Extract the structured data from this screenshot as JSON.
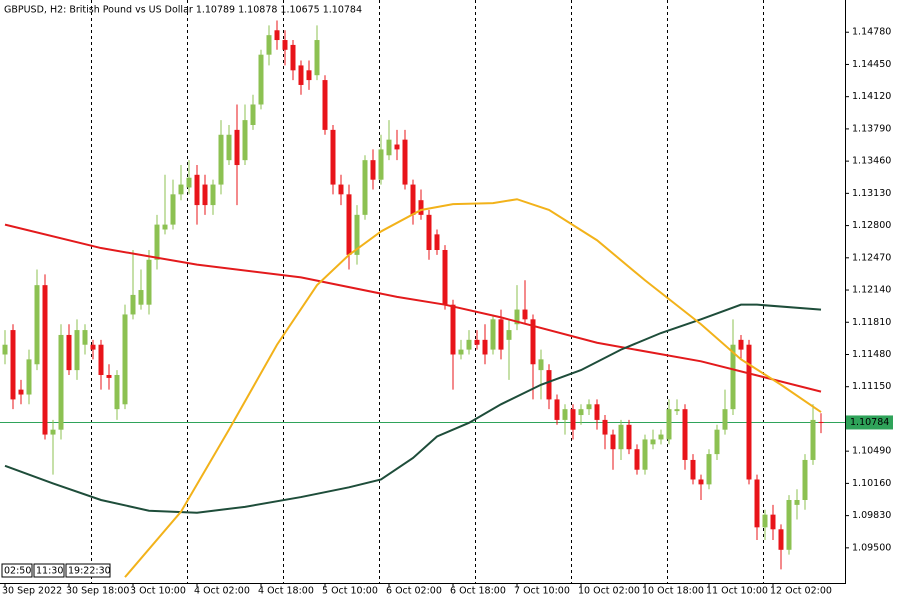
{
  "chart_data": {
    "type": "candlestick",
    "title": "GBPUSD, H2:  British Pound vs US Dollar  1.10789 1.10878 1.10675 1.10784",
    "categories": [
      "30 Sep 2022",
      null,
      null,
      null,
      null,
      null,
      null,
      null,
      "30 Sep 18:00",
      null,
      null,
      null,
      null,
      null,
      null,
      null,
      "3 Oct 10:00",
      null,
      null,
      null,
      null,
      null,
      null,
      null,
      "4 Oct 02:00",
      null,
      null,
      null,
      null,
      null,
      null,
      null,
      "4 Oct 18:00",
      null,
      null,
      null,
      null,
      null,
      null,
      null,
      "5 Oct 10:00",
      null,
      null,
      null,
      null,
      null,
      null,
      null,
      "6 Oct 02:00",
      null,
      null,
      null,
      null,
      null,
      null,
      null,
      "6 Oct 18:00",
      null,
      null,
      null,
      null,
      null,
      null,
      null,
      "7 Oct 10:00",
      null,
      null,
      null,
      null,
      null,
      null,
      null,
      "10 Oct 02:00",
      null,
      null,
      null,
      null,
      null,
      null,
      null,
      "10 Oct 18:00",
      null,
      null,
      null,
      null,
      null,
      null,
      null,
      "11 Oct 10:00",
      null,
      null,
      null,
      null,
      null,
      null,
      null,
      "12 Oct 02:00",
      null,
      null,
      null,
      null,
      null,
      null
    ],
    "candles": [
      [
        1.1148,
        1.1173,
        1.1138,
        1.1158
      ],
      [
        1.1173,
        1.1179,
        1.1092,
        1.1102
      ],
      [
        1.1112,
        1.1122,
        1.1097,
        1.1107
      ],
      [
        1.1107,
        1.1153,
        1.1097,
        1.1143
      ],
      [
        1.1138,
        1.1235,
        1.1132,
        1.1219
      ],
      [
        1.1219,
        1.123,
        1.1061,
        1.1066
      ],
      [
        1.1066,
        1.1081,
        1.1025,
        1.1071
      ],
      [
        1.1071,
        1.1179,
        1.1061,
        1.1168
      ],
      [
        1.1168,
        1.1179,
        1.1127,
        1.1132
      ],
      [
        1.1132,
        1.1184,
        1.1122,
        1.1173
      ],
      [
        1.1158,
        1.1179,
        1.1148,
        1.1173
      ],
      [
        1.1158,
        1.1163,
        1.1143,
        1.1153
      ],
      [
        1.1158,
        1.1163,
        1.1112,
        1.1127
      ],
      [
        1.1127,
        1.1138,
        1.1112,
        1.1124
      ],
      [
        1.1092,
        1.1132,
        1.1081,
        1.1127
      ],
      [
        1.1097,
        1.1199,
        1.1092,
        1.1189
      ],
      [
        1.1189,
        1.1255,
        1.1184,
        1.1209
      ],
      [
        1.1199,
        1.1235,
        1.1194,
        1.1214
      ],
      [
        1.1199,
        1.1255,
        1.1189,
        1.1245
      ],
      [
        1.1245,
        1.1291,
        1.1235,
        1.1281
      ],
      [
        1.1276,
        1.1332,
        1.1271,
        1.1281
      ],
      [
        1.1281,
        1.1327,
        1.1276,
        1.1312
      ],
      [
        1.1312,
        1.1342,
        1.1306,
        1.1322
      ],
      [
        1.1319,
        1.1347,
        1.1312,
        1.1329
      ],
      [
        1.1332,
        1.1342,
        1.1281,
        1.1301
      ],
      [
        1.1322,
        1.1332,
        1.1291,
        1.1301
      ],
      [
        1.1301,
        1.1327,
        1.1291,
        1.1322
      ],
      [
        1.1322,
        1.1388,
        1.1312,
        1.1373
      ],
      [
        1.1347,
        1.1383,
        1.1342,
        1.1373
      ],
      [
        1.1378,
        1.1404,
        1.1301,
        1.1342
      ],
      [
        1.1347,
        1.1404,
        1.1342,
        1.1388
      ],
      [
        1.1383,
        1.1414,
        1.1378,
        1.1404
      ],
      [
        1.1404,
        1.146,
        1.1399,
        1.1455
      ],
      [
        1.1455,
        1.1485,
        1.1444,
        1.1475
      ],
      [
        1.148,
        1.149,
        1.146,
        1.147
      ],
      [
        1.147,
        1.148,
        1.1444,
        1.146
      ],
      [
        1.1465,
        1.147,
        1.1429,
        1.1439
      ],
      [
        1.1444,
        1.1449,
        1.1414,
        1.1424
      ],
      [
        1.1439,
        1.1449,
        1.1419,
        1.1429
      ],
      [
        1.1434,
        1.1485,
        1.1429,
        1.147
      ],
      [
        1.1429,
        1.1434,
        1.1373,
        1.1378
      ],
      [
        1.1378,
        1.1383,
        1.1312,
        1.1322
      ],
      [
        1.1322,
        1.1332,
        1.1301,
        1.1312
      ],
      [
        1.1312,
        1.1322,
        1.1235,
        1.125
      ],
      [
        1.125,
        1.1301,
        1.124,
        1.1291
      ],
      [
        1.1291,
        1.1352,
        1.1286,
        1.1347
      ],
      [
        1.1347,
        1.1358,
        1.1317,
        1.1327
      ],
      [
        1.1327,
        1.1373,
        1.1322,
        1.1358
      ],
      [
        1.1352,
        1.1388,
        1.1347,
        1.1368
      ],
      [
        1.1363,
        1.1378,
        1.1347,
        1.1358
      ],
      [
        1.1368,
        1.1378,
        1.1317,
        1.1322
      ],
      [
        1.1322,
        1.1327,
        1.1281,
        1.1291
      ],
      [
        1.1306,
        1.1317,
        1.1286,
        1.1291
      ],
      [
        1.1291,
        1.1296,
        1.1245,
        1.1255
      ],
      [
        1.1271,
        1.1276,
        1.125,
        1.1255
      ],
      [
        1.1255,
        1.126,
        1.1194,
        1.1199
      ],
      [
        1.1199,
        1.1204,
        1.1112,
        1.1148
      ],
      [
        1.1148,
        1.1163,
        1.1143,
        1.1153
      ],
      [
        1.1153,
        1.1173,
        1.1148,
        1.1163
      ],
      [
        1.1163,
        1.1173,
        1.1153,
        1.1158
      ],
      [
        1.1163,
        1.1179,
        1.1138,
        1.1148
      ],
      [
        1.1153,
        1.1189,
        1.1148,
        1.1184
      ],
      [
        1.1184,
        1.1194,
        1.1143,
        1.1153
      ],
      [
        1.1163,
        1.1184,
        1.1122,
        1.1173
      ],
      [
        1.1179,
        1.1219,
        1.1173,
        1.1194
      ],
      [
        1.1194,
        1.1224,
        1.1179,
        1.1184
      ],
      [
        1.1184,
        1.1189,
        1.1102,
        1.1138
      ],
      [
        1.1132,
        1.1153,
        1.1102,
        1.1143
      ],
      [
        1.1132,
        1.1138,
        1.1092,
        1.1102
      ],
      [
        1.1102,
        1.1107,
        1.1076,
        1.1081
      ],
      [
        1.1081,
        1.1097,
        1.1066,
        1.1092
      ],
      [
        1.1092,
        1.1097,
        1.1061,
        1.1071
      ],
      [
        1.1086,
        1.1097,
        1.1076,
        1.1092
      ],
      [
        1.1092,
        1.1102,
        1.1086,
        1.1097
      ],
      [
        1.1097,
        1.1102,
        1.1071,
        1.1081
      ],
      [
        1.1081,
        1.1086,
        1.1051,
        1.1066
      ],
      [
        1.1066,
        1.1071,
        1.103,
        1.1051
      ],
      [
        1.1051,
        1.1081,
        1.104,
        1.1076
      ],
      [
        1.1076,
        1.1081,
        1.1046,
        1.1051
      ],
      [
        1.1051,
        1.1056,
        1.1025,
        1.103
      ],
      [
        1.103,
        1.1066,
        1.1025,
        1.1061
      ],
      [
        1.1056,
        1.1071,
        1.1051,
        1.1061
      ],
      [
        1.1061,
        1.1071,
        1.1056,
        1.1066
      ],
      [
        1.1061,
        1.1102,
        1.1056,
        1.1092
      ],
      [
        1.109,
        1.1102,
        1.1086,
        1.1092
      ],
      [
        1.1092,
        1.1097,
        1.103,
        1.104
      ],
      [
        1.104,
        1.1046,
        1.1015,
        1.102
      ],
      [
        1.102,
        1.1025,
        1.0999,
        1.1015
      ],
      [
        1.1015,
        1.1051,
        1.101,
        1.1046
      ],
      [
        1.1046,
        1.1076,
        1.104,
        1.1071
      ],
      [
        1.1071,
        1.1112,
        1.1066,
        1.1092
      ],
      [
        1.1092,
        1.1184,
        1.1086,
        1.1158
      ],
      [
        1.1163,
        1.1168,
        1.1143,
        1.1153
      ],
      [
        1.1158,
        1.1163,
        1.1015,
        1.102
      ],
      [
        1.102,
        1.1025,
        1.0958,
        1.0971
      ],
      [
        1.0971,
        1.0989,
        1.0958,
        1.0984
      ],
      [
        1.0984,
        1.0994,
        1.0958,
        1.0969
      ],
      [
        1.0969,
        1.0974,
        1.0928,
        1.0948
      ],
      [
        1.0948,
        1.1004,
        1.0943,
        1.0999
      ],
      [
        1.0994,
        1.101,
        1.0979,
        1.0999
      ],
      [
        1.0999,
        1.1046,
        1.0989,
        1.104
      ],
      [
        1.104,
        1.1097,
        1.1035,
        1.1081
      ],
      [
        1.10789,
        1.10878,
        1.10675,
        1.10784
      ]
    ],
    "up_color": "#8cc152",
    "down_color": "#e8141a",
    "series": [
      {
        "color": "#e31a1c",
        "x": [
          0,
          12,
          24,
          37,
          49,
          55,
          62,
          74,
          87,
          102
        ],
        "values": [
          1.1281,
          1.1257,
          1.124,
          1.1227,
          1.1207,
          1.1199,
          1.1186,
          1.116,
          1.1141,
          1.111
        ]
      },
      {
        "color": "#1e4d3a",
        "x": [
          0,
          6,
          12,
          18,
          24,
          30,
          37,
          43,
          47,
          51,
          54,
          58,
          62,
          67,
          72,
          77,
          82,
          87,
          92,
          94,
          102
        ],
        "values": [
          1.1034,
          1.1016,
          1.0999,
          1.0988,
          1.0986,
          1.0992,
          1.1002,
          1.1012,
          1.102,
          1.1042,
          1.1064,
          1.1078,
          1.1097,
          1.1117,
          1.1132,
          1.1153,
          1.117,
          1.1184,
          1.1199,
          1.1199,
          1.1194
        ]
      },
      {
        "color": "#f2b21a",
        "x": [
          15,
          22,
          28,
          34,
          39,
          43,
          47,
          52,
          56,
          61,
          64,
          68,
          74,
          80,
          87,
          92,
          97,
          102
        ],
        "values": [
          1.092,
          1.0987,
          1.1071,
          1.1158,
          1.1219,
          1.125,
          1.1274,
          1.1296,
          1.1302,
          1.1303,
          1.1307,
          1.1296,
          1.1265,
          1.1224,
          1.1179,
          1.1143,
          1.1117,
          1.1089
        ]
      }
    ],
    "current_price": 1.10784,
    "current_price_color": "#2fa35a",
    "ylim": [
      1.0914,
      1.1511
    ],
    "yticks": [
      {
        "value": 1.1478,
        "label": "1.14780"
      },
      {
        "value": 1.1445,
        "label": "1.14450"
      },
      {
        "value": 1.1412,
        "label": "1.14120"
      },
      {
        "value": 1.1379,
        "label": "1.13790"
      },
      {
        "value": 1.1346,
        "label": "1.13460"
      },
      {
        "value": 1.1313,
        "label": "1.13130"
      },
      {
        "value": 1.128,
        "label": "1.12800"
      },
      {
        "value": 1.1247,
        "label": "1.12470"
      },
      {
        "value": 1.1214,
        "label": "1.12140"
      },
      {
        "value": 1.1181,
        "label": "1.11810"
      },
      {
        "value": 1.1148,
        "label": "1.11480"
      },
      {
        "value": 1.1115,
        "label": "1.11150"
      },
      {
        "value": 1.1049,
        "label": "1.10490"
      },
      {
        "value": 1.1016,
        "label": "1.10160"
      },
      {
        "value": 1.0983,
        "label": "1.09830"
      },
      {
        "value": 1.095,
        "label": "1.09500"
      }
    ],
    "cursor_labels": [
      "02:50",
      "11:30",
      "19:22:30"
    ]
  }
}
